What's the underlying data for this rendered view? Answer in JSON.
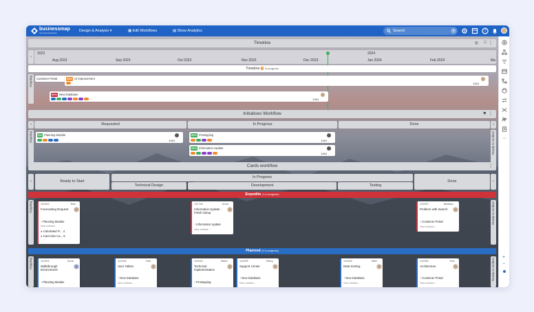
{
  "topbar": {
    "brand": "businessmap",
    "brand_sub": "formerly Kanbanize",
    "nav": [
      "Design & Analysis",
      "Edit Workflows",
      "Show Analytics"
    ],
    "search_placeholder": "Search"
  },
  "timeline": {
    "title": "Timeline",
    "years": [
      "2023",
      "2024"
    ],
    "months": [
      "Aug 2023",
      "Sep 2023",
      "Oct 2023",
      "Nov 2023",
      "Dec 2023",
      "Jan 2024",
      "Feb 2024",
      "Ma"
    ],
    "sub_title": "Timeline",
    "sub_count": "3",
    "sub_status": "In progress",
    "lane_label": "Ongoing",
    "rows": [
      {
        "label": "Customer Portal"
      },
      {
        "pct": "28%",
        "title": "UI Improvement",
        "meta": "1264"
      },
      {
        "pct": "50%",
        "title": "New Database",
        "meta": "1264"
      }
    ]
  },
  "initiatives": {
    "title": "Initiatives Workflow",
    "columns": [
      "Requested",
      "In Progress",
      "Done"
    ],
    "lane_label": "Ongoing",
    "right_label": "Ready to Archive",
    "cards": [
      {
        "pct": "0%",
        "title": "Planning Module",
        "meta": "1264"
      },
      {
        "pct": "50%",
        "title": "Prototyping",
        "meta": "1264"
      },
      {
        "pct": "60%",
        "title": "Information Update",
        "meta": "1264"
      }
    ]
  },
  "cards_workflow": {
    "title": "Cards workflow",
    "columns": {
      "ready": "Ready to Start",
      "inprogress": "In Progress",
      "design": "Technical Design",
      "development": "Development",
      "testing": "Testing",
      "done": "Done"
    },
    "expedite": {
      "title": "Expedite",
      "count": "1",
      "status": "in progress"
    },
    "planned": {
      "title": "Planned",
      "count": "4",
      "status": "in progress"
    },
    "lane_label": "Ongoing",
    "right_label": "Ready to Archive",
    "expedite_cards": [
      {
        "id": "141912",
        "owner": "Tess",
        "title": "Forecasting Request",
        "parent": "Planning Module",
        "subtask": "New subtask...",
        "links": [
          "Calculated Fi... 4",
          "Card Size Ca... 8"
        ]
      },
      {
        "id": "141718",
        "owner": "Anna",
        "title": "Information Update - Finish Setup",
        "parent": "Information Update",
        "subtask": "New subtask..."
      },
      {
        "id": "141907",
        "owner": "Barbara",
        "title": "Problem with Search",
        "parent": "Customer Portal",
        "subtask": "New subtask..."
      }
    ],
    "planned_cards": [
      {
        "id": "141901",
        "owner": "Anna",
        "title": "Walkthrough Environment",
        "parent": "Planning Module"
      },
      {
        "id": "141904",
        "owner": "Nick",
        "title": "User Tables",
        "parent": "New Database",
        "subtask": "New subtask..."
      },
      {
        "id": "141615",
        "owner": "Maria",
        "title": "Technical Implementation",
        "parent": "Prototyping"
      },
      {
        "id": "141905",
        "owner": "Mikey",
        "title": "Support Center",
        "parent": "New Database",
        "subtask": "New subtask..."
      },
      {
        "id": "141918",
        "owner": "Mike",
        "title": "Data Sorting",
        "parent": "New Database",
        "subtask": "New subtask..."
      },
      {
        "id": "141900",
        "owner": "Tess",
        "title": "Architecture",
        "parent": "Customer Portal",
        "subtask": "New subtask..."
      }
    ]
  },
  "colors": {
    "topbar": "#1f63c6",
    "expedite": "#d0323a",
    "planned": "#2a6dc4"
  }
}
